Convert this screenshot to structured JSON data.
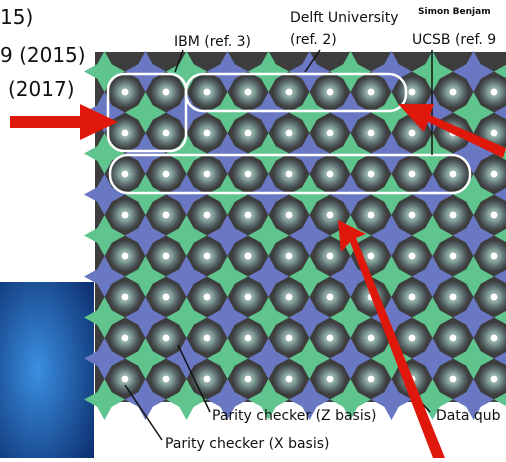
{
  "left_labels": [
    "15)",
    "9 (2015)",
    "(2017)"
  ],
  "top_labels": {
    "ibm": "IBM (ref. 3)",
    "delft_1": "Delft University",
    "delft_2": "(ref. 2)",
    "simon": "Simon Benjam",
    "ucsb": "UCSB (ref. 9"
  },
  "bottom_labels": {
    "parity_z": "Parity checker (Z basis)",
    "data_qubit": "Data qub",
    "parity_x": "Parity checker (X basis)"
  }
}
